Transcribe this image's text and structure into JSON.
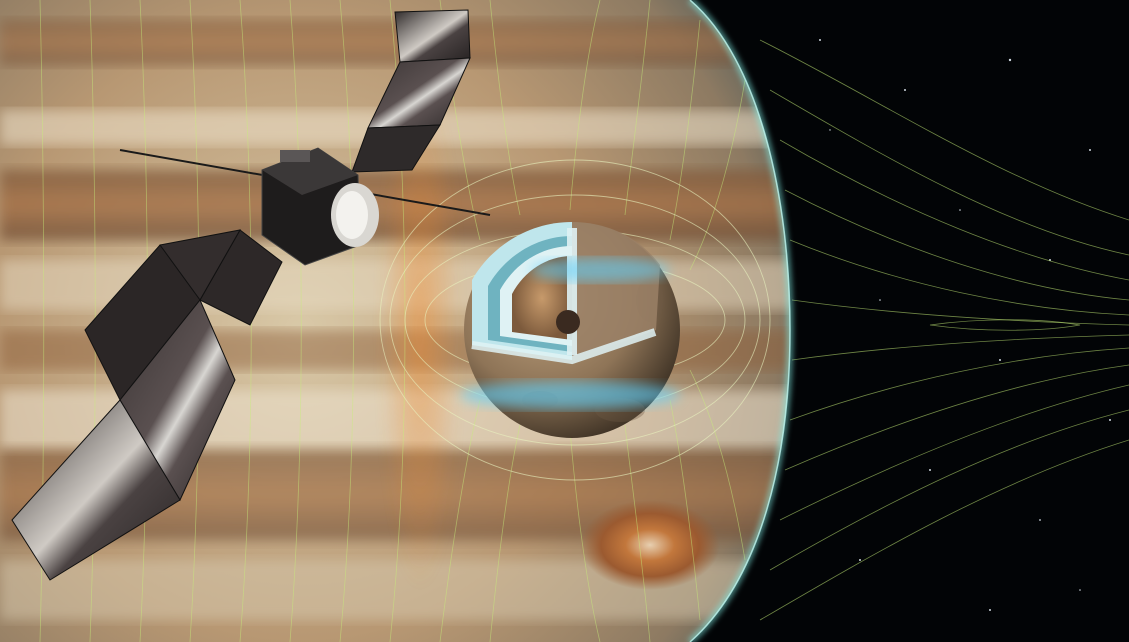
{
  "image": {
    "subject": "spacecraft-near-moon-cutaway-in-front-of-gas-giant",
    "colors": {
      "space": "#020406",
      "planet_cream": "#d9c9a8",
      "planet_brown": "#8a5a35",
      "planet_orange": "#c06a2a",
      "atmosphere_cyan": "#7fe7e0",
      "field_lines": "#c8f07a",
      "aurora_blue": "#5fd3ff",
      "moon_core": "#8b6a4e",
      "moon_ice": "#bfe6ec",
      "solar_panel": "#2a2626"
    }
  }
}
